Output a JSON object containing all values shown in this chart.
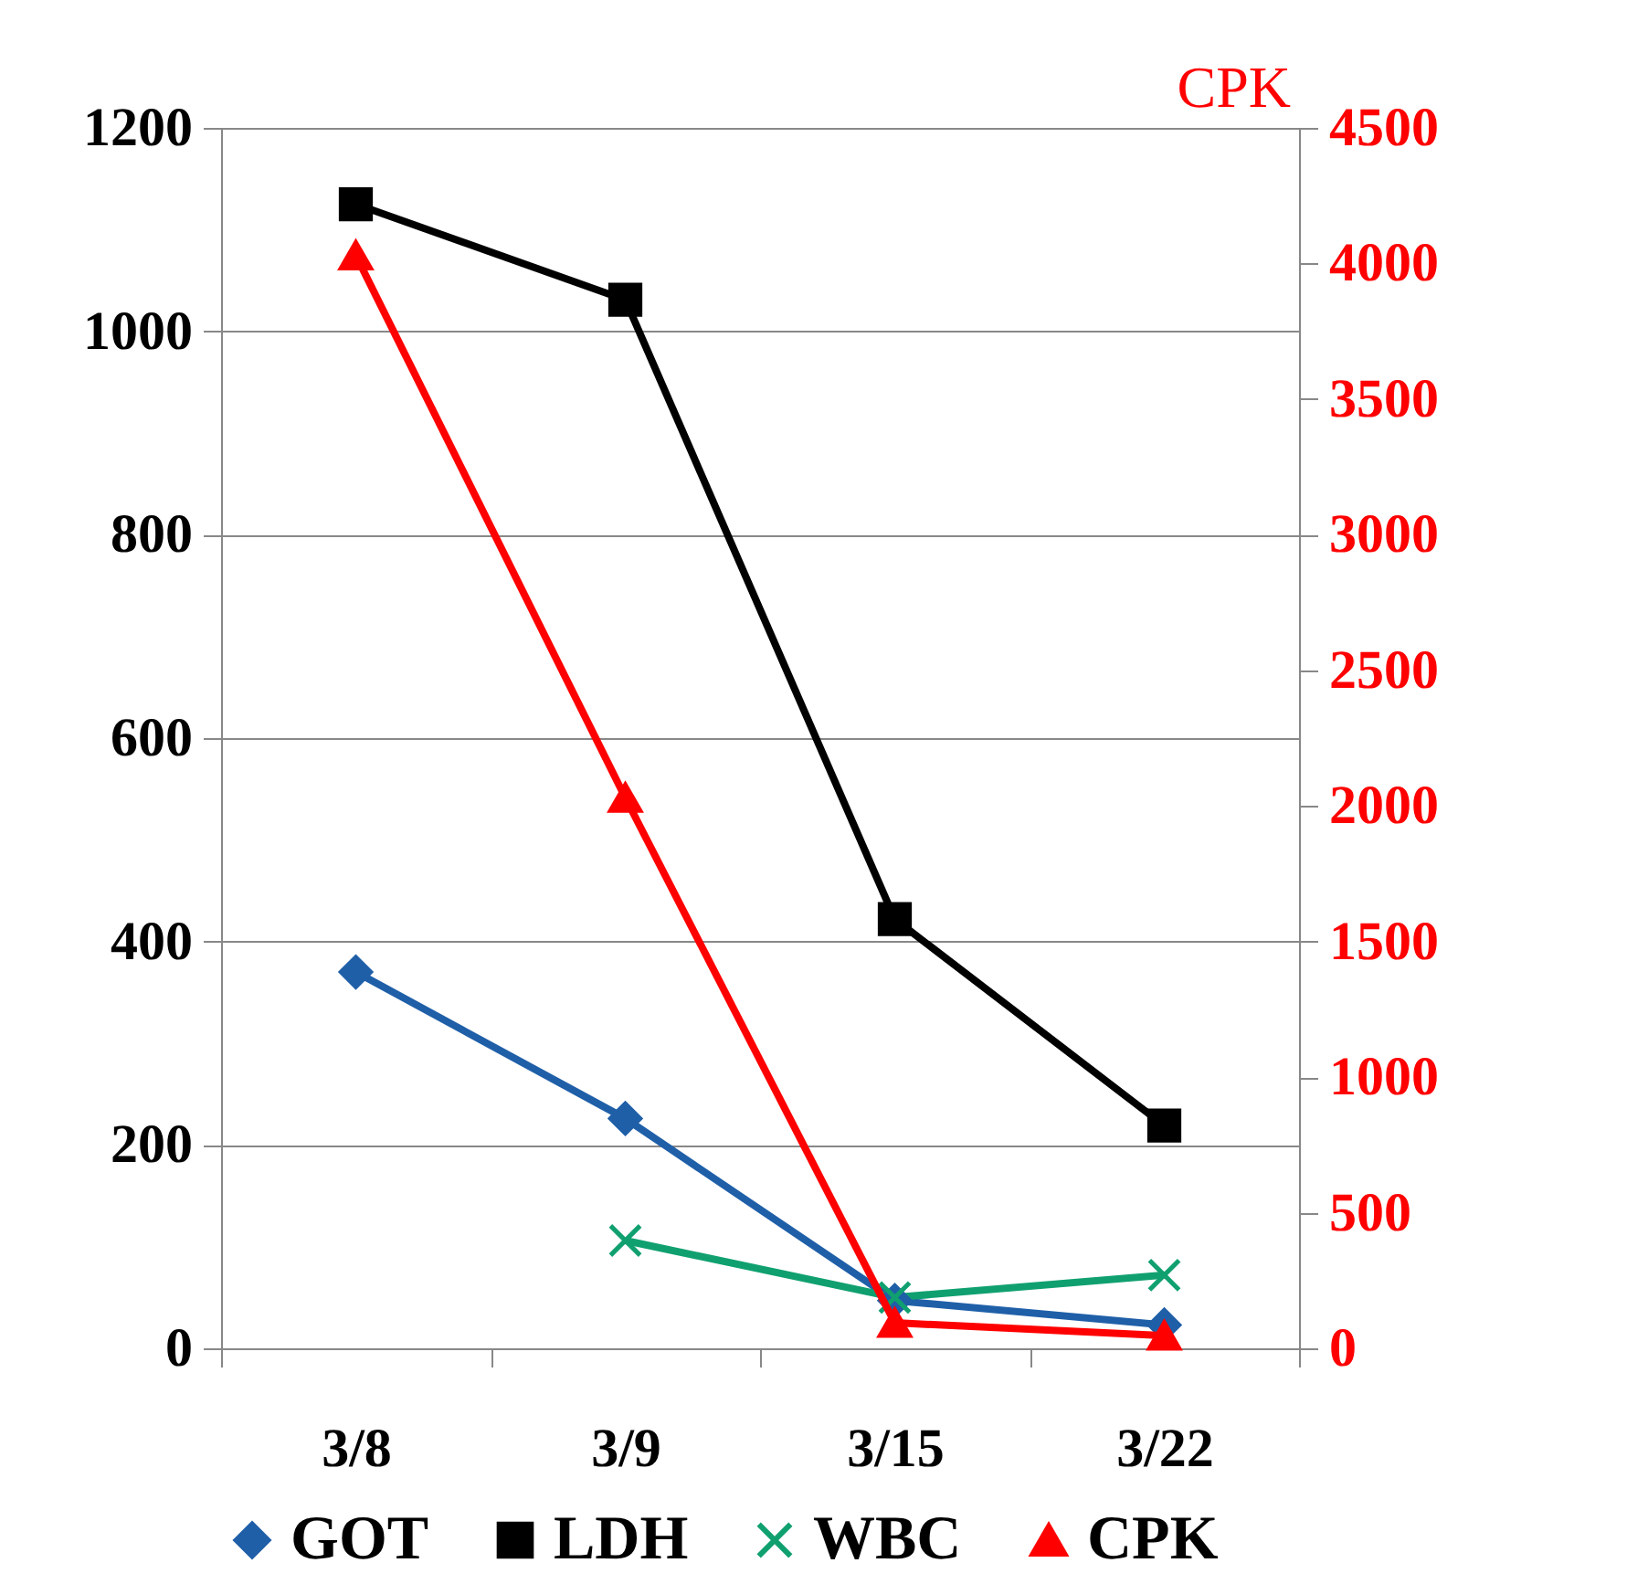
{
  "chart_data": {
    "type": "line",
    "y2label": "CPK",
    "categories": [
      "3/8",
      "3/9",
      "3/15",
      "3/22"
    ],
    "series": [
      {
        "name": "GOT",
        "color": "#1f5fa8",
        "marker": "diamond",
        "values": [
          370,
          226,
          47,
          23
        ]
      },
      {
        "name": "LDH",
        "color": "#000000",
        "marker": "square",
        "values": [
          1125,
          1031,
          422,
          219
        ]
      },
      {
        "name": "WBC",
        "color": "#10a070",
        "marker": "cross",
        "values": [
          null,
          106,
          50,
          72
        ]
      },
      {
        "name": "CPK",
        "color": "#ff0000",
        "marker": "triangle",
        "axis": "y2",
        "values": [
          4030,
          2030,
          94,
          47
        ]
      }
    ],
    "ylim": [
      0,
      1200
    ],
    "yticks": [
      0,
      200,
      400,
      600,
      800,
      1000,
      1200
    ],
    "y2lim": [
      0,
      4500
    ],
    "y2ticks": [
      0,
      500,
      1000,
      1500,
      2000,
      2500,
      3000,
      3500,
      4000,
      4500
    ],
    "grid": "y",
    "legend": "bottom"
  }
}
